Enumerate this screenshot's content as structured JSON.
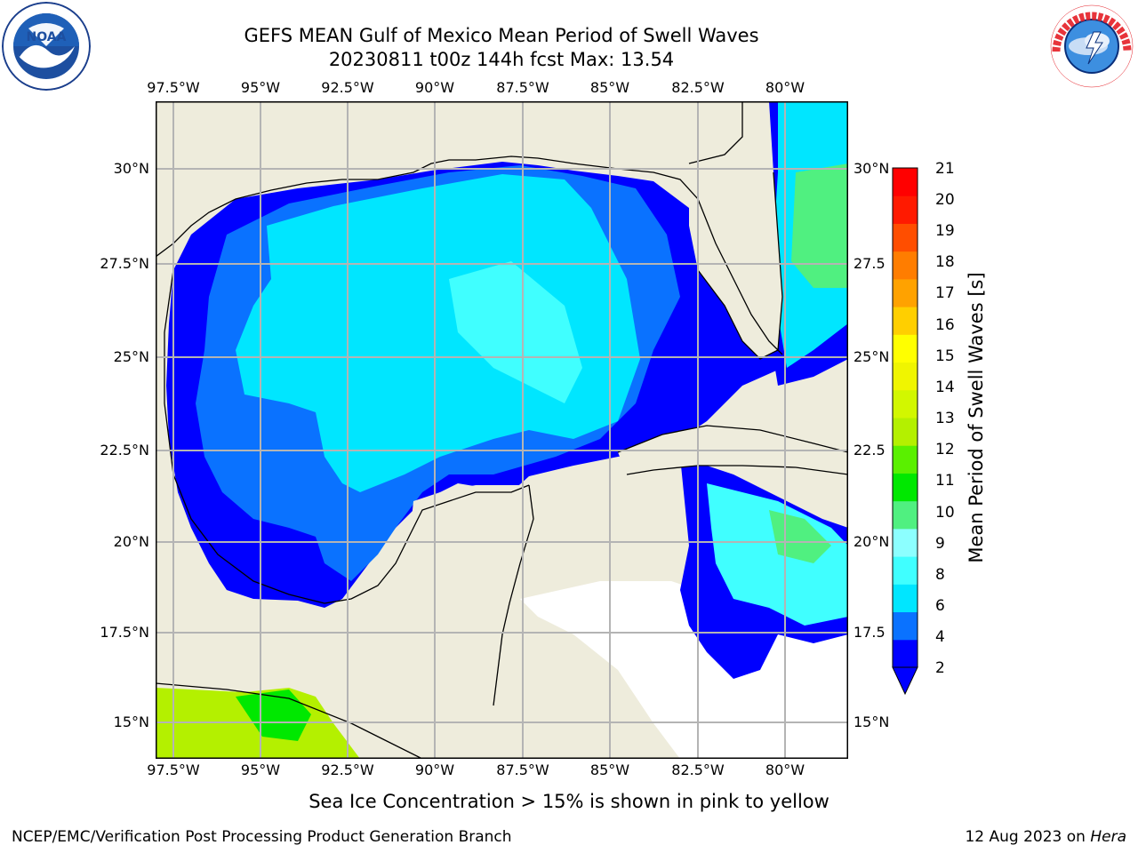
{
  "header": {
    "title_line1": "GEFS MEAN Gulf of Mexico Mean Period of Swell Waves",
    "title_line2": "20230811 t00z 144h fcst   Max: 13.54"
  },
  "logos": {
    "left": "NOAA",
    "right": "NATIONAL WEATHER SERVICE"
  },
  "map": {
    "lon_labels": [
      "97.5°W",
      "95°W",
      "92.5°W",
      "90°W",
      "87.5°W",
      "85°W",
      "82.5°W",
      "80°W"
    ],
    "lat_labels": [
      "30°N",
      "27.5°N",
      "25°N",
      "22.5°N",
      "20°N",
      "17.5°N",
      "15°N"
    ],
    "right_lat_labels": [
      "30°N",
      "27.5",
      "25°N",
      "22.5",
      "20°N",
      "17.5",
      "15°N"
    ],
    "colors": {
      "land": "#eeecdc",
      "coast": "#000000",
      "grid": "#b4b4b4",
      "missing": "#ffffff"
    }
  },
  "colorbar": {
    "title": "Mean Period of Swell Waves [s]",
    "ticks": [
      "21",
      "20",
      "19",
      "18",
      "17",
      "16",
      "15",
      "14",
      "13",
      "12",
      "11",
      "10",
      "9",
      "8",
      "6",
      "4",
      "2"
    ],
    "bands": [
      "#0000ff",
      "#0a72ff",
      "#00e6ff",
      "#40ffff",
      "#8cffff",
      "#50f080",
      "#00e800",
      "#5af000",
      "#b4f000",
      "#d2f700",
      "#f0f500",
      "#ffff00",
      "#ffcf00",
      "#ffa200",
      "#ff7d00",
      "#ff4e00",
      "#ff1a00",
      "#ff0000"
    ]
  },
  "notes": {
    "sea_ice": "Sea Ice Concentration > 15% is shown in pink to yellow",
    "credit": "NCEP/EMC/Verification Post Processing Product Generation Branch",
    "date": "12 Aug 2023 on ",
    "host": "Hera"
  }
}
